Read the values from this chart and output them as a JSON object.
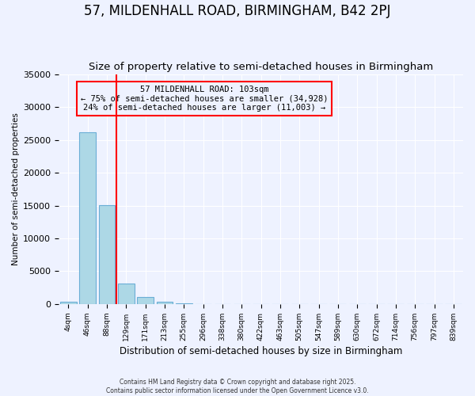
{
  "title": "57, MILDENHALL ROAD, BIRMINGHAM, B42 2PJ",
  "subtitle": "Size of property relative to semi-detached houses in Birmingham",
  "xlabel": "Distribution of semi-detached houses by size in Birmingham",
  "ylabel": "Number of semi-detached properties",
  "bin_labels": [
    "4sqm",
    "46sqm",
    "88sqm",
    "129sqm",
    "171sqm",
    "213sqm",
    "255sqm",
    "296sqm",
    "338sqm",
    "380sqm",
    "422sqm",
    "463sqm",
    "505sqm",
    "547sqm",
    "589sqm",
    "630sqm",
    "672sqm",
    "714sqm",
    "756sqm",
    "797sqm",
    "839sqm"
  ],
  "bar_values": [
    350,
    26100,
    15100,
    3100,
    1100,
    350,
    150,
    0,
    0,
    0,
    0,
    0,
    0,
    0,
    0,
    0,
    0,
    0,
    0,
    0,
    0
  ],
  "bar_color": "#add8e6",
  "bar_edge_color": "#6baed6",
  "vline_x": 2.5,
  "vline_color": "red",
  "annotation_title": "57 MILDENHALL ROAD: 103sqm",
  "annotation_line2": "← 75% of semi-detached houses are smaller (34,928)",
  "annotation_line3": "24% of semi-detached houses are larger (11,003) →",
  "ylim": [
    0,
    35000
  ],
  "yticks": [
    0,
    5000,
    10000,
    15000,
    20000,
    25000,
    30000,
    35000
  ],
  "background_color": "#eef2ff",
  "footer_line1": "Contains HM Land Registry data © Crown copyright and database right 2025.",
  "footer_line2": "Contains public sector information licensed under the Open Government Licence v3.0.",
  "title_fontsize": 12,
  "subtitle_fontsize": 9.5
}
